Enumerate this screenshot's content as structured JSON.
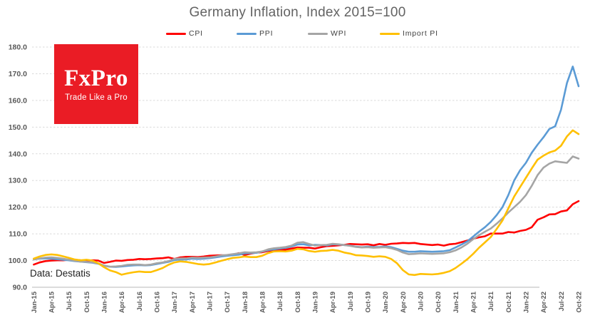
{
  "title": "Germany Inflation, Index 2015=100",
  "source_note": "Data: Destatis",
  "logo": {
    "wordmark": "FxPro",
    "tagline": "Trade Like a Pro",
    "bg_color": "#ea1c25"
  },
  "colors": {
    "title_text": "#636363",
    "axis_text": "#595959",
    "gridline": "#d9d9d9",
    "axis_line": "#c6c6c6"
  },
  "chart_data": {
    "type": "line",
    "title": "Germany Inflation, Index 2015=100",
    "xlabel": "",
    "ylabel": "",
    "ylim": [
      90,
      180
    ],
    "y_tick_step": 10,
    "y_tick_format": "one_decimal",
    "grid": "horizontal-dashed",
    "legend_position": "top",
    "n_points": 94,
    "points_per_tick": 3,
    "x_tick_labels": [
      "Jan-15",
      "Apr-15",
      "Jul-15",
      "Oct-15",
      "Jan-16",
      "Apr-16",
      "Jul-16",
      "Oct-16",
      "Jan-17",
      "Apr-17",
      "Jul-17",
      "Oct-17",
      "Jan-18",
      "Apr-18",
      "Jul-18",
      "Oct-18",
      "Jan-19",
      "Apr-19",
      "Jul-19",
      "Oct-19",
      "Jan-20",
      "Apr-20",
      "Jul-20",
      "Oct-20",
      "Jan-21",
      "Apr-21",
      "Jul-21",
      "Oct-21",
      "Jan-22",
      "Apr-22",
      "Jul-22",
      "Oct-22"
    ],
    "series": [
      {
        "name": "CPI",
        "color": "#ff0000",
        "values": [
          98.5,
          99.3,
          99.8,
          100.0,
          100.1,
          100.1,
          100.3,
          100.3,
          100.1,
          100.0,
          100.1,
          100.0,
          99.1,
          99.5,
          100.0,
          99.9,
          100.2,
          100.3,
          100.6,
          100.5,
          100.6,
          100.8,
          100.9,
          101.2,
          100.6,
          101.2,
          101.4,
          101.4,
          101.3,
          101.5,
          101.8,
          101.9,
          102.0,
          101.9,
          102.2,
          102.8,
          102.1,
          102.6,
          103.0,
          103.1,
          103.6,
          103.7,
          104.0,
          104.1,
          104.5,
          104.9,
          104.8,
          104.8,
          104.5,
          105.0,
          105.4,
          105.5,
          105.7,
          105.9,
          106.2,
          106.1,
          106.0,
          106.1,
          105.7,
          106.2,
          105.9,
          106.3,
          106.4,
          106.6,
          106.5,
          106.6,
          106.2,
          106.0,
          105.8,
          106.0,
          105.6,
          106.1,
          106.3,
          106.9,
          107.5,
          108.2,
          108.7,
          109.1,
          110.1,
          110.1,
          110.1,
          110.7,
          110.5,
          111.1,
          111.5,
          112.5,
          115.3,
          116.2,
          117.3,
          117.4,
          118.4,
          118.8,
          121.1,
          122.3
        ]
      },
      {
        "name": "PPI",
        "color": "#5b9bd5",
        "values": [
          100.5,
          100.7,
          100.8,
          100.7,
          100.5,
          100.3,
          100.1,
          99.8,
          99.6,
          99.4,
          99.2,
          98.8,
          98.1,
          97.7,
          97.6,
          97.8,
          98.0,
          98.2,
          98.3,
          98.2,
          98.3,
          98.7,
          99.1,
          99.5,
          100.2,
          100.4,
          100.4,
          100.7,
          100.6,
          100.7,
          100.9,
          101.2,
          101.5,
          101.8,
          102.0,
          102.2,
          102.7,
          102.8,
          102.9,
          103.4,
          103.9,
          104.2,
          104.5,
          104.8,
          105.3,
          106.0,
          106.1,
          105.7,
          105.9,
          105.8,
          105.7,
          106.1,
          106.0,
          105.8,
          105.6,
          105.2,
          105.0,
          105.2,
          105.1,
          105.1,
          105.3,
          105.0,
          104.4,
          103.7,
          103.3,
          103.3,
          103.5,
          103.4,
          103.3,
          103.4,
          103.5,
          103.9,
          104.9,
          106.0,
          107.2,
          109.0,
          110.8,
          112.5,
          114.5,
          117.0,
          120.0,
          124.5,
          130.0,
          133.8,
          136.6,
          140.4,
          143.4,
          146.2,
          149.3,
          150.3,
          156.5,
          166.5,
          172.7,
          165.3
        ]
      },
      {
        "name": "WPI",
        "color": "#a5a5a5",
        "values": [
          100.4,
          100.8,
          101.1,
          101.2,
          101.0,
          100.7,
          100.3,
          99.9,
          99.6,
          99.5,
          99.3,
          99.0,
          98.1,
          97.7,
          97.8,
          98.0,
          98.4,
          98.5,
          98.5,
          98.3,
          98.5,
          99.0,
          99.3,
          99.8,
          100.6,
          100.8,
          100.8,
          101.1,
          101.0,
          101.1,
          101.2,
          101.5,
          101.9,
          102.1,
          102.4,
          102.7,
          103.1,
          103.0,
          103.1,
          103.4,
          104.2,
          104.6,
          104.8,
          105.1,
          105.6,
          106.7,
          106.9,
          106.2,
          105.6,
          105.8,
          105.9,
          106.3,
          106.1,
          105.8,
          105.5,
          105.1,
          104.9,
          105.0,
          104.8,
          104.9,
          105.0,
          104.6,
          104.0,
          103.0,
          102.4,
          102.5,
          102.7,
          102.6,
          102.5,
          102.6,
          102.7,
          103.1,
          103.8,
          104.9,
          106.3,
          108.0,
          109.5,
          110.8,
          112.0,
          113.8,
          115.8,
          118.0,
          120.0,
          122.0,
          124.5,
          128.0,
          132.0,
          134.8,
          136.3,
          137.2,
          136.9,
          136.6,
          139.0,
          138.2
        ]
      },
      {
        "name": "Import PI",
        "color": "#ffc000",
        "values": [
          100.7,
          101.5,
          102.1,
          102.3,
          102.1,
          101.6,
          101.0,
          100.4,
          100.1,
          100.3,
          100.0,
          99.0,
          97.5,
          96.3,
          95.7,
          94.7,
          95.2,
          95.6,
          95.9,
          95.7,
          95.7,
          96.4,
          97.2,
          98.4,
          99.3,
          99.7,
          99.5,
          99.1,
          98.7,
          98.5,
          98.7,
          99.3,
          99.9,
          100.5,
          101.0,
          101.2,
          101.5,
          101.3,
          101.3,
          101.8,
          102.8,
          103.4,
          103.5,
          103.4,
          103.7,
          104.4,
          104.2,
          103.6,
          103.3,
          103.6,
          103.7,
          104.0,
          103.7,
          103.0,
          102.6,
          102.0,
          101.9,
          101.7,
          101.4,
          101.6,
          101.4,
          100.6,
          99.0,
          96.4,
          94.8,
          94.6,
          95.0,
          94.9,
          94.8,
          95.0,
          95.4,
          96.0,
          97.2,
          98.8,
          100.5,
          102.5,
          104.8,
          106.8,
          108.8,
          111.8,
          115.0,
          119.5,
          124.0,
          127.5,
          131.0,
          134.5,
          137.8,
          139.3,
          140.5,
          141.2,
          143.0,
          146.5,
          148.8,
          147.4
        ]
      }
    ]
  }
}
